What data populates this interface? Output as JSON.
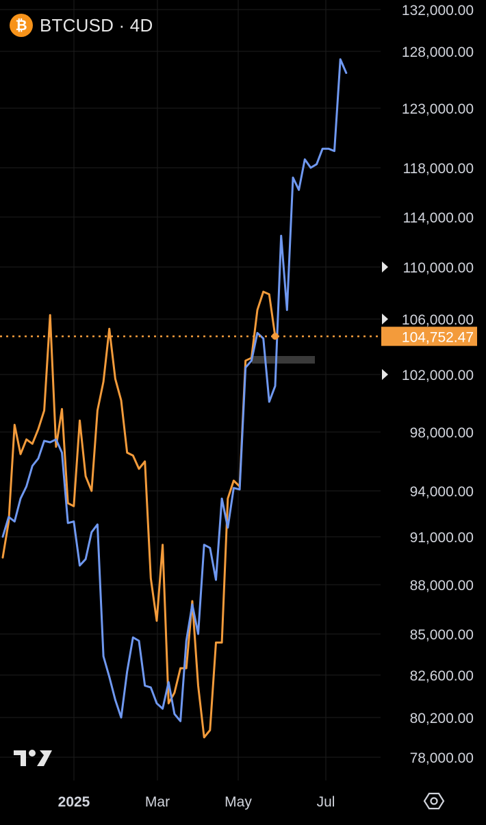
{
  "header": {
    "symbol_title": "BTCUSD · 4D",
    "coin_icon": "bitcoin-icon",
    "coin_glyph": "₿"
  },
  "colors": {
    "background": "#000000",
    "orange_series": "#f39b3b",
    "blue_series": "#6f98f0",
    "grid": "#1e1e1e",
    "price_tag_bg": "#f39b3b",
    "price_tag_text": "#ffffff"
  },
  "watermark_icon": "tradingview-logo-icon",
  "settings_icon": "gear-icon",
  "chart_data": {
    "type": "line",
    "title": "BTCUSD · 4D",
    "y_ticks": [
      {
        "label": "132,000.00",
        "marker": false
      },
      {
        "label": "128,000.00",
        "marker": false
      },
      {
        "label": "123,000.00",
        "marker": false
      },
      {
        "label": "118,000.00",
        "marker": false
      },
      {
        "label": "114,000.00",
        "marker": false
      },
      {
        "label": "110,000.00",
        "marker": true
      },
      {
        "label": "106,000.00",
        "marker": true
      },
      {
        "label": "102,000.00",
        "marker": true
      },
      {
        "label": "98,000.00",
        "marker": false
      },
      {
        "label": "94,000.00",
        "marker": false
      },
      {
        "label": "91,000.00",
        "marker": false
      },
      {
        "label": "88,000.00",
        "marker": false
      },
      {
        "label": "85,000.00",
        "marker": false
      },
      {
        "label": "82,600.00",
        "marker": false
      },
      {
        "label": "80,200.00",
        "marker": false
      },
      {
        "label": "78,000.00",
        "marker": false
      }
    ],
    "x_ticks": [
      {
        "label": "2025",
        "bold": true
      },
      {
        "label": "Mar",
        "bold": false
      },
      {
        "label": "May",
        "bold": false
      },
      {
        "label": "Jul",
        "bold": false
      }
    ],
    "grid": true,
    "current_price": {
      "label": "104,752.47",
      "value": 104752.47
    },
    "series": [
      {
        "color": "#f39b3b",
        "x": [
          "2024-11-28",
          "2024-12-02",
          "2024-12-06",
          "2024-12-10",
          "2024-12-14",
          "2024-12-18",
          "2024-12-22",
          "2024-12-26",
          "2024-12-30",
          "2025-01-03",
          "2025-01-07",
          "2025-01-11",
          "2025-01-15",
          "2025-01-19",
          "2025-01-23",
          "2025-01-27",
          "2025-01-31",
          "2025-02-04",
          "2025-02-08",
          "2025-02-12",
          "2025-02-16",
          "2025-02-20",
          "2025-02-24",
          "2025-02-28",
          "2025-03-04",
          "2025-03-08",
          "2025-03-12",
          "2025-03-16",
          "2025-03-20",
          "2025-03-24",
          "2025-03-28",
          "2025-04-01",
          "2025-04-05",
          "2025-04-09",
          "2025-04-13",
          "2025-04-17",
          "2025-04-21",
          "2025-04-25",
          "2025-04-29",
          "2025-05-03",
          "2025-05-07",
          "2025-05-11",
          "2025-05-15",
          "2025-05-19",
          "2025-05-23",
          "2025-05-27",
          "2025-05-31"
        ],
        "y": [
          89700,
          92000,
          98500,
          96500,
          97500,
          97200,
          98200,
          99500,
          106300,
          97000,
          99600,
          93200,
          93000,
          98800,
          95000,
          94000,
          99500,
          101500,
          105300,
          101700,
          100200,
          96600,
          96400,
          95500,
          96000,
          88400,
          85800,
          90500,
          81000,
          81600,
          83000,
          83000,
          87000,
          82000,
          79100,
          79500,
          84500,
          84500,
          93500,
          94700,
          94300,
          103000,
          103200,
          106700,
          108100,
          107900,
          104752
        ]
      },
      {
        "color": "#6f98f0",
        "x": [
          "2024-11-28",
          "2024-12-02",
          "2024-12-06",
          "2024-12-10",
          "2024-12-14",
          "2024-12-18",
          "2024-12-22",
          "2024-12-26",
          "2024-12-30",
          "2025-01-03",
          "2025-01-07",
          "2025-01-11",
          "2025-01-15",
          "2025-01-19",
          "2025-01-23",
          "2025-01-27",
          "2025-01-31",
          "2025-02-04",
          "2025-02-08",
          "2025-02-12",
          "2025-02-16",
          "2025-02-20",
          "2025-02-24",
          "2025-02-28",
          "2025-03-04",
          "2025-03-08",
          "2025-03-12",
          "2025-03-16",
          "2025-03-20",
          "2025-03-24",
          "2025-03-28",
          "2025-04-01",
          "2025-04-05",
          "2025-04-09",
          "2025-04-13",
          "2025-04-17",
          "2025-04-21",
          "2025-04-25",
          "2025-04-29",
          "2025-05-03",
          "2025-05-07",
          "2025-05-11",
          "2025-05-15",
          "2025-05-19",
          "2025-05-23",
          "2025-05-27",
          "2025-05-31",
          "2025-06-04",
          "2025-06-08",
          "2025-06-12",
          "2025-06-16",
          "2025-06-20",
          "2025-06-24",
          "2025-06-28",
          "2025-07-02",
          "2025-07-06",
          "2025-07-10",
          "2025-07-14",
          "2025-07-18"
        ],
        "y": [
          91000,
          92300,
          92000,
          93500,
          94300,
          95700,
          96200,
          97400,
          97300,
          97500,
          96600,
          91900,
          92000,
          89200,
          89600,
          91300,
          91800,
          83700,
          82500,
          81200,
          80200,
          82800,
          84800,
          84600,
          82000,
          81900,
          81000,
          80700,
          82200,
          80400,
          80000,
          84600,
          86800,
          85000,
          90500,
          90300,
          88300,
          93500,
          91600,
          94200,
          94100,
          102500,
          103000,
          105000,
          104600,
          100100,
          101200,
          112500,
          106700,
          117200,
          116200,
          118700,
          118000,
          118300,
          119600,
          119600,
          119400,
          127300,
          126100
        ]
      }
    ]
  }
}
